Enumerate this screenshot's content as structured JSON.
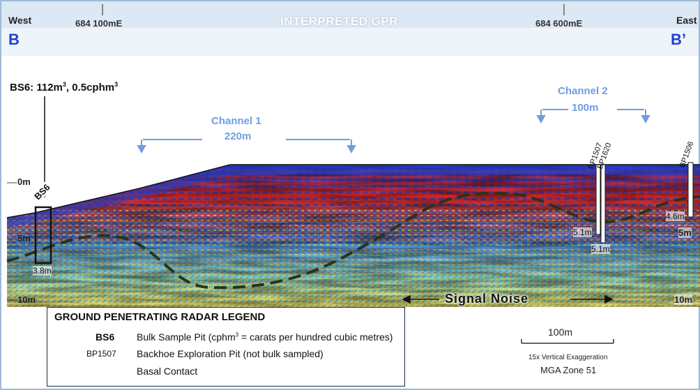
{
  "title": "INTERPRETED GPR",
  "west_label": "West",
  "east_label": "East",
  "section_start": "B",
  "section_end": "B’",
  "easting_ticks": [
    "684 100mE",
    "684 600mE"
  ],
  "depth_labels": [
    "0m",
    "5m",
    "10m"
  ],
  "bs6_callout": {
    "main": "BS6: 112m",
    "sup1": "3",
    "mid": ", 0.5cphm",
    "sup2": "3"
  },
  "channels": [
    {
      "name": "Channel 1",
      "width": "220m"
    },
    {
      "name": "Channel 2",
      "width": "100m"
    }
  ],
  "pits": [
    {
      "id": "BS6",
      "depth": "3.8m",
      "type": "bulk"
    },
    {
      "id": "BP1507",
      "depth": "5.1m",
      "type": "backhoe"
    },
    {
      "id": "BP1620",
      "depth": "5.1m",
      "type": "backhoe"
    },
    {
      "id": "BP1506",
      "depth": "4.6m",
      "type": "backhoe"
    }
  ],
  "right_depth_labels": [
    "5m",
    "10m"
  ],
  "signal_noise": "Signal Noise",
  "legend": {
    "title": "GROUND PENETRATING RADAR LEGEND",
    "bulk_code": "BS6",
    "bulk_text_a": "Bulk Sample Pit (cphm",
    "bulk_sup": "3",
    "bulk_text_b": " = carats per hundred cubic metres)",
    "backhoe_code": "BP1507",
    "backhoe_text": "Backhoe Exploration Pit (not bulk sampled)",
    "basal_text": "Basal Contact"
  },
  "scale": {
    "bar_label": "100m",
    "exaggeration": "15x Vertical Exaggeration",
    "zone": "MGA Zone 51"
  },
  "colors": {
    "title_white": "#ffffff",
    "section_letter": "#1f3fd6",
    "channel_blue": "#6f9ee0",
    "frame_navy": "#1a2a4a",
    "radar_red": "#e02020",
    "radar_blue": "#2040d0",
    "radar_yellow": "#f0e040",
    "radar_cyan": "#60d0e0",
    "basal_line": "#2a3318"
  }
}
